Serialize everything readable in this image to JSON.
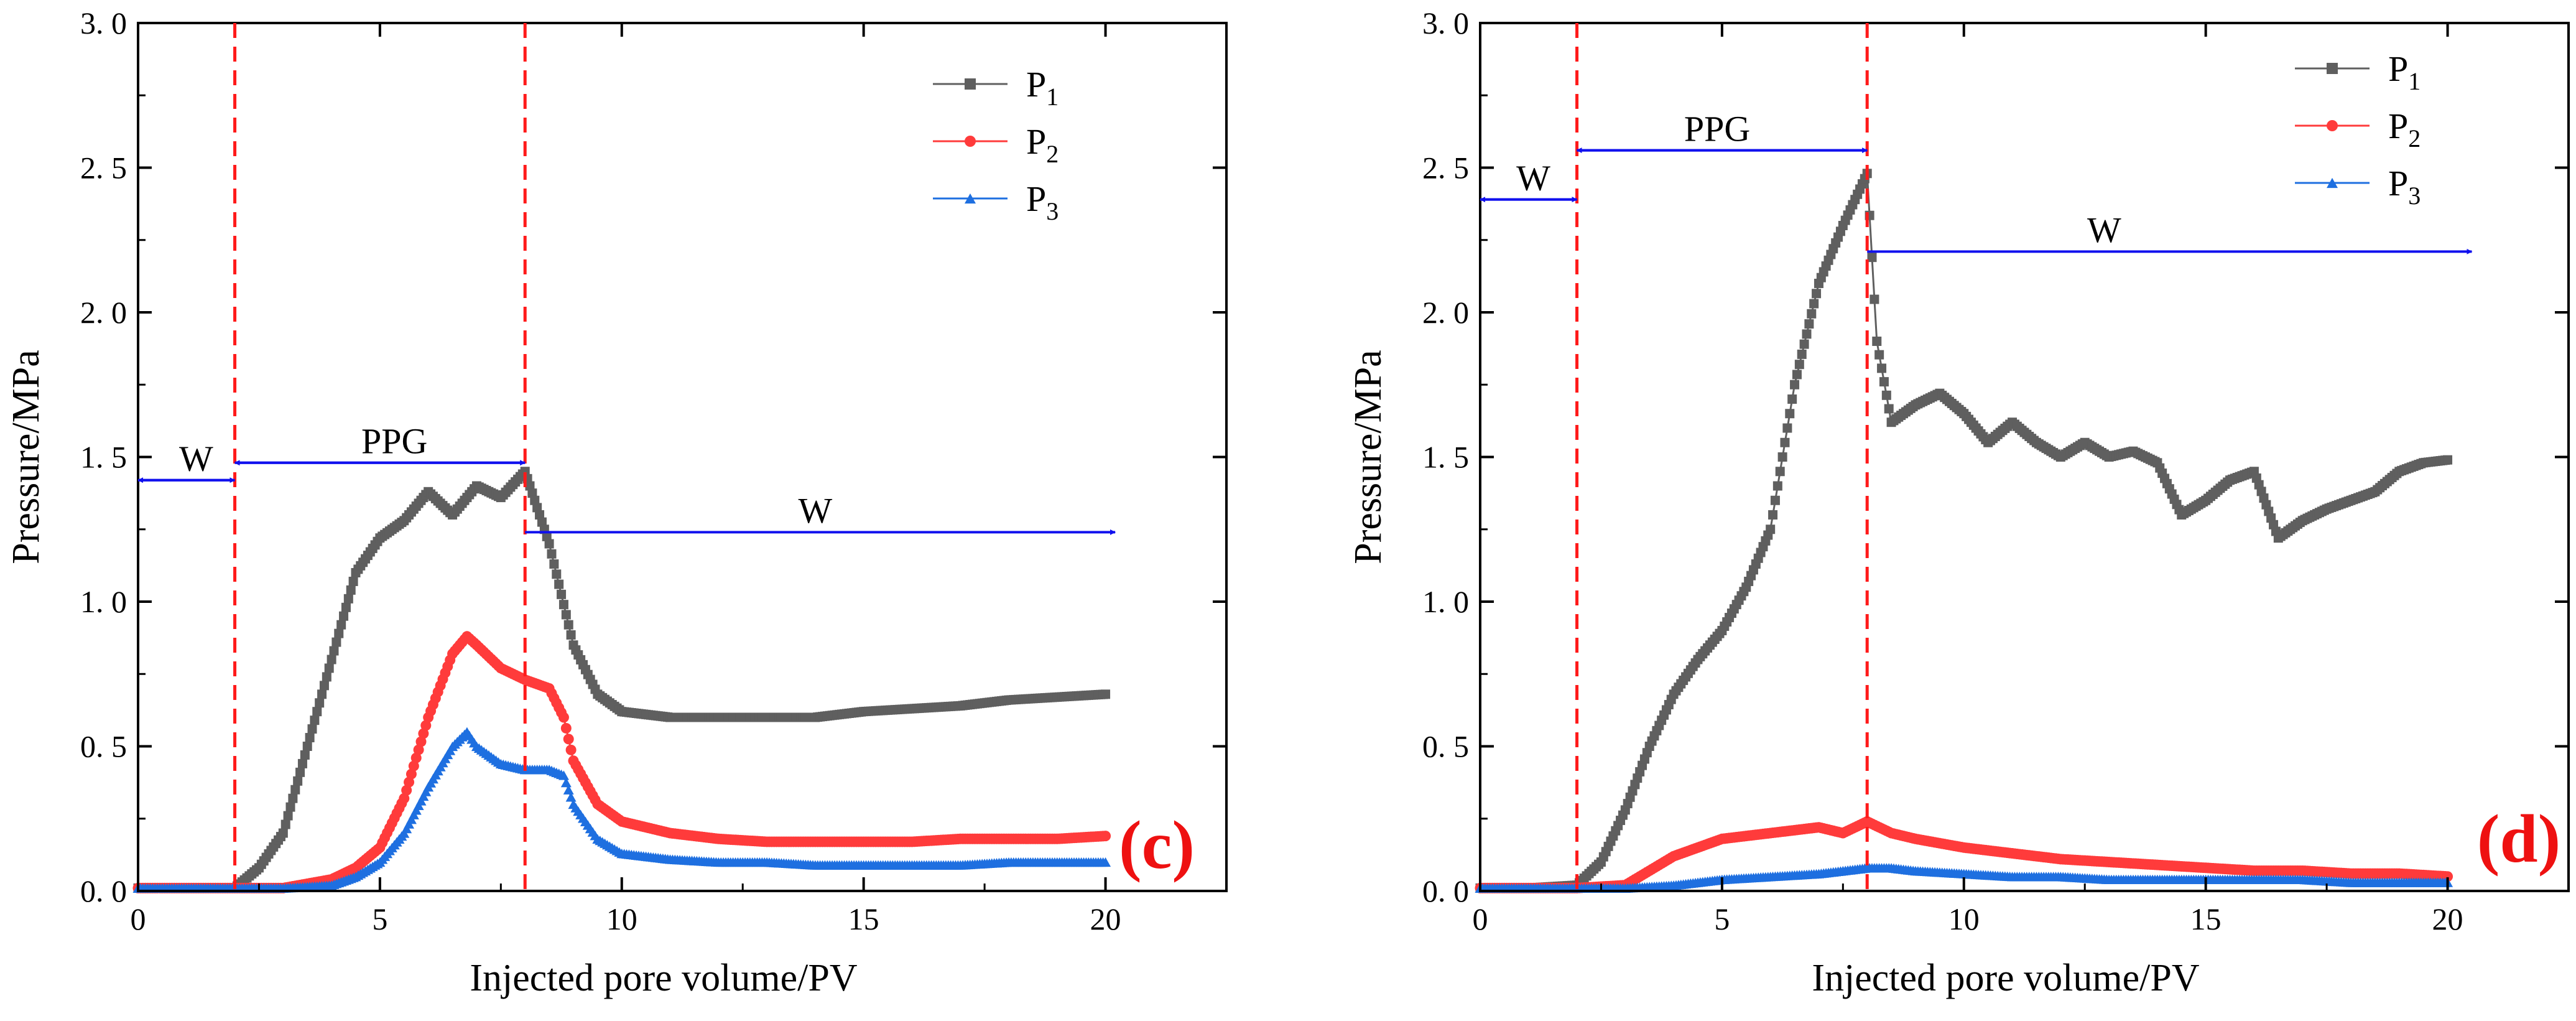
{
  "colors": {
    "p1": "#5f5f5f",
    "p2": "#ff3b3b",
    "p3": "#1e6fe0",
    "phase_line": "#ff1a1a",
    "arrow": "#1010ee",
    "panel_label": "#ee1111"
  },
  "chart_data": [
    {
      "type": "line",
      "panel_label": "(c)",
      "xlabel": "Injected pore volume/PV",
      "ylabel": "Pressure/MPa",
      "xlim": [
        0,
        22.5
      ],
      "ylim": [
        0,
        3.0
      ],
      "x_ticks": [
        0,
        5,
        10,
        15,
        20
      ],
      "x_tick_labels": [
        "0",
        "5",
        "10",
        "15",
        "20"
      ],
      "y_ticks": [
        0,
        0.5,
        1.0,
        1.5,
        2.0,
        2.5,
        3.0
      ],
      "y_tick_labels": [
        "0. 0",
        "0. 5",
        "1. 0",
        "1. 5",
        "2. 0",
        "2. 5",
        "3. 0"
      ],
      "phase_lines_x": [
        2,
        8
      ],
      "annotations": [
        {
          "text": "W",
          "x_from": 0,
          "x_to": 2,
          "y": 1.42,
          "label_x": 1.2,
          "label_y": 1.44
        },
        {
          "text": "PPG",
          "x_from": 2,
          "x_to": 8,
          "y": 1.48,
          "label_x": 5.3,
          "label_y": 1.5
        },
        {
          "text": "W",
          "x_from": 8,
          "x_to": 20.2,
          "y": 1.24,
          "label_x": 14.0,
          "label_y": 1.26
        }
      ],
      "legend": {
        "position": "top-right",
        "entries": [
          {
            "name": "P",
            "sub": "1",
            "series": 0
          },
          {
            "name": "P",
            "sub": "2",
            "series": 1
          },
          {
            "name": "P",
            "sub": "3",
            "series": 2
          }
        ]
      },
      "series": [
        {
          "name": "P1",
          "marker": "square",
          "x": [
            0,
            1,
            2,
            2.5,
            3,
            3.5,
            4,
            4.5,
            5,
            5.5,
            6,
            6.5,
            7,
            7.5,
            8,
            8.5,
            9,
            9.5,
            10,
            11,
            12,
            13,
            14,
            15,
            16,
            17,
            18,
            19,
            20
          ],
          "y": [
            0.01,
            0.01,
            0.01,
            0.08,
            0.2,
            0.5,
            0.8,
            1.1,
            1.22,
            1.28,
            1.38,
            1.3,
            1.4,
            1.36,
            1.45,
            1.2,
            0.85,
            0.68,
            0.62,
            0.6,
            0.6,
            0.6,
            0.6,
            0.62,
            0.63,
            0.64,
            0.66,
            0.67,
            0.68
          ]
        },
        {
          "name": "P2",
          "marker": "circle",
          "x": [
            0,
            2,
            3,
            4,
            4.5,
            5,
            5.5,
            6,
            6.5,
            6.8,
            7,
            7.5,
            8,
            8.5,
            8.8,
            9,
            9.5,
            10,
            11,
            12,
            13,
            14,
            15,
            16,
            17,
            18,
            19,
            20
          ],
          "y": [
            0.01,
            0.01,
            0.01,
            0.04,
            0.08,
            0.15,
            0.32,
            0.6,
            0.82,
            0.88,
            0.85,
            0.77,
            0.73,
            0.7,
            0.6,
            0.45,
            0.3,
            0.24,
            0.2,
            0.18,
            0.17,
            0.17,
            0.17,
            0.17,
            0.18,
            0.18,
            0.18,
            0.19
          ]
        },
        {
          "name": "P3",
          "marker": "triangle",
          "x": [
            0,
            2,
            3,
            4,
            4.5,
            5,
            5.5,
            6,
            6.5,
            6.8,
            7,
            7.5,
            8,
            8.5,
            8.8,
            9,
            9.5,
            10,
            11,
            12,
            13,
            14,
            15,
            16,
            17,
            18,
            19,
            20
          ],
          "y": [
            0.01,
            0.01,
            0.01,
            0.02,
            0.05,
            0.1,
            0.2,
            0.36,
            0.5,
            0.55,
            0.5,
            0.44,
            0.42,
            0.42,
            0.4,
            0.3,
            0.18,
            0.13,
            0.11,
            0.1,
            0.1,
            0.09,
            0.09,
            0.09,
            0.09,
            0.1,
            0.1,
            0.1
          ]
        }
      ]
    },
    {
      "type": "line",
      "panel_label": "(d)",
      "xlabel": "Injected pore volume/PV",
      "ylabel": "Pressure/MPa",
      "xlim": [
        0,
        22.5
      ],
      "ylim": [
        0,
        3.0
      ],
      "x_ticks": [
        0,
        5,
        10,
        15,
        20
      ],
      "x_tick_labels": [
        "0",
        "5",
        "10",
        "15",
        "20"
      ],
      "y_ticks": [
        0,
        0.5,
        1.0,
        1.5,
        2.0,
        2.5,
        3.0
      ],
      "y_tick_labels": [
        "0. 0",
        "0. 5",
        "1. 0",
        "1. 5",
        "2. 0",
        "2. 5",
        "3. 0"
      ],
      "phase_lines_x": [
        2,
        8
      ],
      "annotations": [
        {
          "text": "W",
          "x_from": 0,
          "x_to": 2,
          "y": 2.39,
          "label_x": 1.1,
          "label_y": 2.41
        },
        {
          "text": "PPG",
          "x_from": 2,
          "x_to": 8,
          "y": 2.56,
          "label_x": 4.9,
          "label_y": 2.58
        },
        {
          "text": "W",
          "x_from": 8,
          "x_to": 20.5,
          "y": 2.21,
          "label_x": 12.9,
          "label_y": 2.23
        }
      ],
      "legend": {
        "position": "top-right",
        "entries": [
          {
            "name": "P",
            "sub": "1",
            "series": 0
          },
          {
            "name": "P",
            "sub": "2",
            "series": 1
          },
          {
            "name": "P",
            "sub": "3",
            "series": 2
          }
        ]
      },
      "series": [
        {
          "name": "P1",
          "marker": "square",
          "x": [
            0,
            1,
            2,
            2.5,
            3,
            3.5,
            4,
            4.5,
            5,
            5.5,
            6,
            6.5,
            7,
            7.5,
            8,
            8.2,
            8.5,
            9,
            9.5,
            10,
            10.5,
            11,
            11.5,
            12,
            12.5,
            13,
            13.5,
            14,
            14.5,
            15,
            15.5,
            16,
            16.5,
            17,
            17.5,
            18,
            18.5,
            19,
            19.5,
            20
          ],
          "y": [
            0.01,
            0.01,
            0.02,
            0.1,
            0.28,
            0.5,
            0.68,
            0.8,
            0.9,
            1.05,
            1.25,
            1.75,
            2.1,
            2.3,
            2.48,
            1.9,
            1.62,
            1.68,
            1.72,
            1.65,
            1.55,
            1.62,
            1.55,
            1.5,
            1.55,
            1.5,
            1.52,
            1.48,
            1.3,
            1.35,
            1.42,
            1.45,
            1.22,
            1.28,
            1.32,
            1.35,
            1.38,
            1.45,
            1.48,
            1.49
          ]
        },
        {
          "name": "P2",
          "marker": "circle",
          "x": [
            0,
            2,
            3,
            4,
            5,
            6,
            7,
            7.5,
            8,
            8.5,
            9,
            10,
            11,
            12,
            13,
            14,
            15,
            16,
            17,
            18,
            19,
            20
          ],
          "y": [
            0.01,
            0.01,
            0.02,
            0.12,
            0.18,
            0.2,
            0.22,
            0.2,
            0.24,
            0.2,
            0.18,
            0.15,
            0.13,
            0.11,
            0.1,
            0.09,
            0.08,
            0.07,
            0.07,
            0.06,
            0.06,
            0.05
          ]
        },
        {
          "name": "P3",
          "marker": "triangle",
          "x": [
            0,
            2,
            3,
            4,
            5,
            6,
            7,
            8,
            8.5,
            9,
            10,
            11,
            12,
            13,
            14,
            15,
            16,
            17,
            18,
            19,
            20
          ],
          "y": [
            0.01,
            0.01,
            0.01,
            0.02,
            0.04,
            0.05,
            0.06,
            0.08,
            0.08,
            0.07,
            0.06,
            0.05,
            0.05,
            0.04,
            0.04,
            0.04,
            0.04,
            0.04,
            0.03,
            0.03,
            0.03
          ]
        }
      ]
    }
  ]
}
